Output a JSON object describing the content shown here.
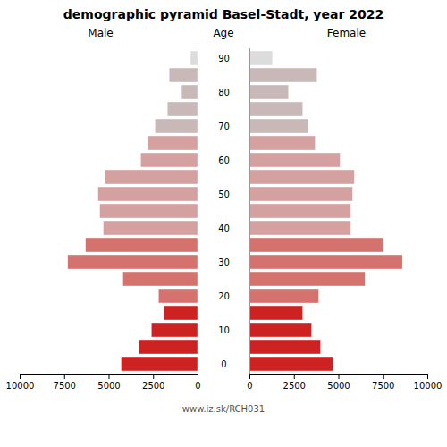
{
  "chart_data": {
    "type": "pyramid",
    "orientation": "horizontal",
    "title": "demographic pyramid Basel-Stadt, year 2022",
    "ylabel": "Age",
    "annotations": [
      "www.iz.sk/RCH031"
    ],
    "categories": [
      "0",
      null,
      "10",
      null,
      "20",
      null,
      "30",
      null,
      "40",
      null,
      "50",
      null,
      "60",
      null,
      "70",
      null,
      "80",
      null,
      "90"
    ],
    "series": [
      {
        "name": "Male",
        "colors": [
          "#cc2222",
          "#cc2222",
          "#cc2222",
          "#cc2222",
          "#d4726e",
          "#d4726e",
          "#d4726e",
          "#d4726e",
          "#d4a0a0",
          "#d4a0a0",
          "#d4a0a0",
          "#d4a0a0",
          "#d4a0a0",
          "#d4a0a0",
          "#c8b8b8",
          "#c8b8b8",
          "#c8b8b8",
          "#c8b8b8",
          "#dcdcdc"
        ],
        "values": [
          4300,
          3300,
          2600,
          1900,
          2200,
          4200,
          7300,
          6300,
          5300,
          5500,
          5600,
          5200,
          3200,
          2800,
          2400,
          1700,
          900,
          1600,
          400
        ]
      },
      {
        "name": "Female",
        "colors": [
          "#cc2222",
          "#cc2222",
          "#cc2222",
          "#cc2222",
          "#d4726e",
          "#d4726e",
          "#d4726e",
          "#d4726e",
          "#d4a0a0",
          "#d4a0a0",
          "#d4a0a0",
          "#d4a0a0",
          "#d4a0a0",
          "#d4a0a0",
          "#c8b8b8",
          "#c8b8b8",
          "#c8b8b8",
          "#c8b8b8",
          "#dcdcdc"
        ],
        "values": [
          4700,
          4000,
          3500,
          3000,
          3900,
          6500,
          8600,
          7500,
          5700,
          5700,
          5800,
          5900,
          5100,
          3700,
          3300,
          3000,
          2200,
          3800,
          1300
        ]
      }
    ],
    "xlim": [
      0,
      10000
    ],
    "xticks": [
      0,
      2500,
      5000,
      7500,
      10000
    ]
  }
}
